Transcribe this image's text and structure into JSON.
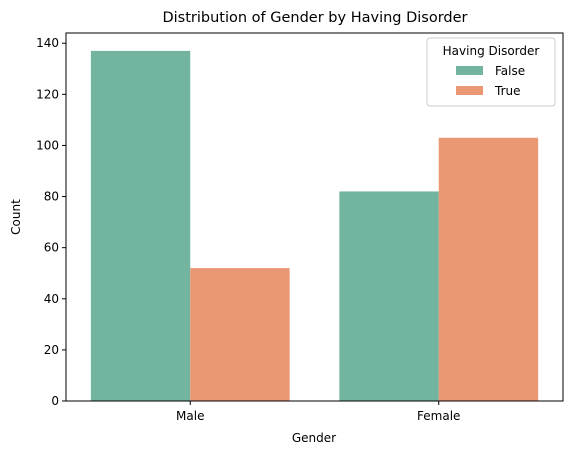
{
  "chart_data": {
    "type": "bar",
    "title": "Distribution of Gender by Having Disorder",
    "xlabel": "Gender",
    "ylabel": "Count",
    "categories": [
      "Male",
      "Female"
    ],
    "series": [
      {
        "name": "False",
        "values": [
          137,
          82
        ],
        "color": "#73b4a0"
      },
      {
        "name": "True",
        "values": [
          52,
          103
        ],
        "color": "#e99873"
      }
    ],
    "ylim": [
      0,
      144
    ],
    "yticks": [
      0,
      20,
      40,
      60,
      80,
      100,
      120,
      140
    ],
    "legend": {
      "title": "Having Disorder",
      "placement": "top-right"
    },
    "grid": false
  }
}
